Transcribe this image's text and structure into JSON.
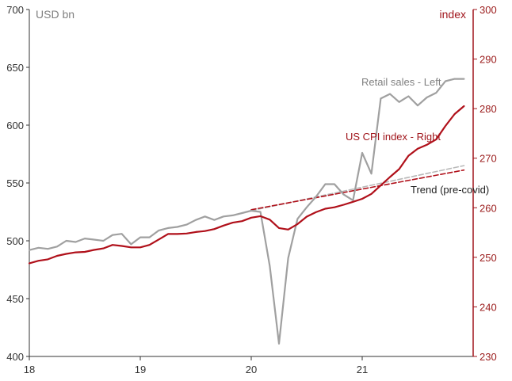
{
  "chart_data": {
    "type": "line",
    "left_axis": {
      "unit_label": "USD bn",
      "ylim": [
        400,
        700
      ],
      "ticks": [
        "400",
        "450",
        "500",
        "550",
        "600",
        "650",
        "700"
      ]
    },
    "right_axis": {
      "unit_label": "index",
      "ylim": [
        230,
        300
      ],
      "ticks": [
        "230",
        "240",
        "250",
        "260",
        "270",
        "280",
        "290",
        "300"
      ]
    },
    "x_axis": {
      "xlim": [
        18,
        22.0
      ],
      "ticks": [
        {
          "value": 18,
          "label": "18"
        },
        {
          "value": 19,
          "label": "19"
        },
        {
          "value": 20,
          "label": "20"
        },
        {
          "value": 21,
          "label": "21"
        }
      ]
    },
    "grid": false,
    "colors": {
      "retail": "#a0a0a0",
      "cpi": "#b0101a",
      "trend_retail": "#b8b8b8",
      "trend_cpi": "#b0101a",
      "right_axis": "#a0151b"
    },
    "annotations": {
      "retail": "Retail sales - Left",
      "cpi": "US CPI index - Right",
      "trend": "Trend (pre-covid)"
    },
    "series": [
      {
        "key": "retail",
        "axis": "left",
        "x": [
          18.0,
          18.083,
          18.167,
          18.25,
          18.333,
          18.417,
          18.5,
          18.583,
          18.667,
          18.75,
          18.833,
          18.917,
          19.0,
          19.083,
          19.167,
          19.25,
          19.333,
          19.417,
          19.5,
          19.583,
          19.667,
          19.75,
          19.833,
          19.917,
          20.0,
          20.083,
          20.167,
          20.25,
          20.333,
          20.417,
          20.5,
          20.583,
          20.667,
          20.75,
          20.833,
          20.917,
          21.0,
          21.083,
          21.167,
          21.25,
          21.333,
          21.417,
          21.5,
          21.583,
          21.667,
          21.75,
          21.833,
          21.917
        ],
        "values": [
          492,
          494,
          493,
          495,
          500,
          499,
          502,
          501,
          500,
          505,
          506,
          497,
          503,
          503,
          509,
          511,
          512,
          514,
          518,
          521,
          518,
          521,
          522,
          524,
          526,
          525,
          478,
          411,
          485,
          519,
          529,
          538,
          549,
          549,
          540,
          535,
          576,
          558,
          623,
          627,
          620,
          625,
          617,
          624,
          628,
          638,
          640,
          640
        ]
      },
      {
        "key": "cpi",
        "axis": "right",
        "x": [
          18.0,
          18.083,
          18.167,
          18.25,
          18.333,
          18.417,
          18.5,
          18.583,
          18.667,
          18.75,
          18.833,
          18.917,
          19.0,
          19.083,
          19.167,
          19.25,
          19.333,
          19.417,
          19.5,
          19.583,
          19.667,
          19.75,
          19.833,
          19.917,
          20.0,
          20.083,
          20.167,
          20.25,
          20.333,
          20.417,
          20.5,
          20.583,
          20.667,
          20.75,
          20.833,
          20.917,
          21.0,
          21.083,
          21.167,
          21.25,
          21.333,
          21.417,
          21.5,
          21.583,
          21.667,
          21.75,
          21.833,
          21.917
        ],
        "values": [
          248.8,
          249.3,
          249.6,
          250.3,
          250.7,
          251.0,
          251.1,
          251.5,
          251.8,
          252.5,
          252.3,
          252.0,
          252.0,
          252.5,
          253.6,
          254.7,
          254.7,
          254.8,
          255.1,
          255.3,
          255.7,
          256.4,
          257.0,
          257.3,
          258.0,
          258.3,
          257.6,
          255.9,
          255.6,
          256.7,
          258.2,
          259.1,
          259.8,
          260.1,
          260.6,
          261.2,
          261.8,
          262.8,
          264.5,
          266.2,
          267.8,
          270.5,
          271.9,
          272.7,
          273.8,
          276.5,
          278.9,
          280.5
        ]
      },
      {
        "key": "trend_retail",
        "axis": "left",
        "dashed": true,
        "x": [
          20.0,
          21.917
        ],
        "values": [
          526,
          565
        ]
      },
      {
        "key": "trend_cpi",
        "axis": "right",
        "dashed": true,
        "x": [
          20.0,
          21.917
        ],
        "values": [
          259.6,
          267.6
        ]
      }
    ]
  }
}
